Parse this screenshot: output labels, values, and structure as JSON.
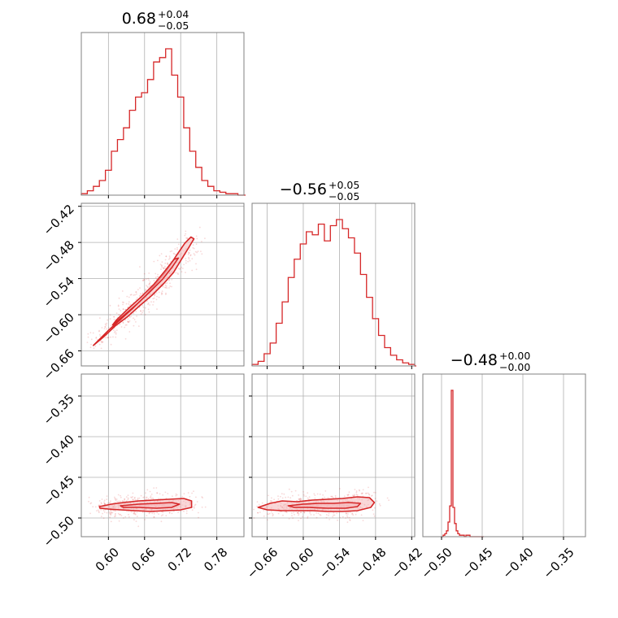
{
  "chart_data": {
    "type": "corner",
    "color": "#d62728",
    "fill_color": "#f4b6b8",
    "grid": true,
    "parameters": [
      {
        "range": [
          0.555,
          0.825
        ],
        "ticks": [
          0.6,
          0.66,
          0.72,
          0.78
        ],
        "tick_labels": [
          "0.60",
          "0.66",
          "0.72",
          "0.78"
        ],
        "title": {
          "main": "0.68",
          "up": "+0.04",
          "down": "−0.05"
        }
      },
      {
        "range": [
          -0.685,
          -0.415
        ],
        "ticks": [
          -0.66,
          -0.6,
          -0.54,
          -0.48,
          -0.42
        ],
        "tick_labels": [
          "−0.66",
          "−0.60",
          "−0.54",
          "−0.48",
          "−0.42"
        ],
        "title": {
          "main": "−0.56",
          "up": "+0.05",
          "down": "−0.05"
        }
      },
      {
        "range": [
          -0.523,
          -0.323
        ],
        "ticks": [
          -0.5,
          -0.45,
          -0.4,
          -0.35
        ],
        "tick_labels": [
          "−0.50",
          "−0.45",
          "−0.40",
          "−0.35"
        ],
        "title": {
          "main": "−0.48",
          "up": "+0.00",
          "down": "−0.00"
        }
      }
    ],
    "histograms": {
      "p0": {
        "x": [
          0.555,
          0.565,
          0.575,
          0.585,
          0.595,
          0.605,
          0.615,
          0.625,
          0.635,
          0.645,
          0.655,
          0.665,
          0.675,
          0.685,
          0.695,
          0.705,
          0.715,
          0.725,
          0.735,
          0.745,
          0.755,
          0.765,
          0.775,
          0.785,
          0.795,
          0.805,
          0.815,
          0.825
        ],
        "y": [
          1,
          3,
          6,
          10,
          17,
          30,
          38,
          46,
          58,
          67,
          70,
          79,
          91,
          94,
          100,
          82,
          67,
          46,
          30,
          19,
          10,
          6,
          3,
          2,
          1,
          1,
          0,
          0
        ]
      },
      "p1": {
        "x": [
          -0.685,
          -0.675,
          -0.665,
          -0.655,
          -0.645,
          -0.635,
          -0.625,
          -0.615,
          -0.605,
          -0.595,
          -0.585,
          -0.575,
          -0.565,
          -0.555,
          -0.545,
          -0.535,
          -0.525,
          -0.515,
          -0.505,
          -0.495,
          -0.485,
          -0.475,
          -0.465,
          -0.455,
          -0.445,
          -0.435,
          -0.425,
          -0.415
        ],
        "y": [
          1,
          3,
          8,
          15,
          28,
          42,
          58,
          70,
          80,
          88,
          86,
          93,
          82,
          92,
          96,
          90,
          84,
          74,
          60,
          45,
          31,
          20,
          12,
          7,
          4,
          2,
          1,
          0
        ]
      },
      "p2": {
        "x": [
          -0.5,
          -0.498,
          -0.496,
          -0.494,
          -0.492,
          -0.49,
          -0.488,
          -0.486,
          -0.484,
          -0.482,
          -0.48,
          -0.478,
          -0.476,
          -0.474,
          -0.472,
          -0.47,
          -0.465,
          -0.46,
          -0.455,
          -0.45
        ],
        "y": [
          0,
          1,
          2,
          4,
          10,
          21,
          100,
          20,
          9,
          4,
          2,
          1,
          1,
          1,
          0,
          1,
          0,
          0,
          0,
          0
        ]
      }
    },
    "contours": {
      "p1_vs_p0": {
        "outer": [
          [
            0.575,
            -0.651
          ],
          [
            0.593,
            -0.636
          ],
          [
            0.612,
            -0.618
          ],
          [
            0.632,
            -0.603
          ],
          [
            0.652,
            -0.585
          ],
          [
            0.672,
            -0.568
          ],
          [
            0.692,
            -0.548
          ],
          [
            0.708,
            -0.53
          ],
          [
            0.722,
            -0.507
          ],
          [
            0.733,
            -0.489
          ],
          [
            0.742,
            -0.474
          ],
          [
            0.737,
            -0.471
          ],
          [
            0.727,
            -0.481
          ],
          [
            0.712,
            -0.503
          ],
          [
            0.697,
            -0.526
          ],
          [
            0.68,
            -0.547
          ],
          [
            0.662,
            -0.568
          ],
          [
            0.642,
            -0.588
          ],
          [
            0.62,
            -0.608
          ],
          [
            0.6,
            -0.626
          ],
          [
            0.583,
            -0.643
          ]
        ],
        "inner": [
          [
            0.607,
            -0.617
          ],
          [
            0.627,
            -0.6
          ],
          [
            0.65,
            -0.58
          ],
          [
            0.67,
            -0.561
          ],
          [
            0.69,
            -0.541
          ],
          [
            0.705,
            -0.522
          ],
          [
            0.716,
            -0.506
          ],
          [
            0.709,
            -0.508
          ],
          [
            0.694,
            -0.527
          ],
          [
            0.676,
            -0.549
          ],
          [
            0.656,
            -0.569
          ],
          [
            0.634,
            -0.589
          ],
          [
            0.613,
            -0.609
          ]
        ]
      },
      "p2_vs_p0": {
        "outer": [
          [
            0.585,
            -0.486
          ],
          [
            0.605,
            -0.483
          ],
          [
            0.625,
            -0.481
          ],
          [
            0.65,
            -0.479
          ],
          [
            0.675,
            -0.478
          ],
          [
            0.7,
            -0.477
          ],
          [
            0.725,
            -0.476
          ],
          [
            0.738,
            -0.479
          ],
          [
            0.738,
            -0.487
          ],
          [
            0.72,
            -0.49
          ],
          [
            0.695,
            -0.491
          ],
          [
            0.67,
            -0.492
          ],
          [
            0.645,
            -0.491
          ],
          [
            0.62,
            -0.49
          ],
          [
            0.6,
            -0.489
          ],
          [
            0.586,
            -0.488
          ]
        ],
        "inner": [
          [
            0.62,
            -0.485
          ],
          [
            0.65,
            -0.483
          ],
          [
            0.68,
            -0.482
          ],
          [
            0.705,
            -0.481
          ],
          [
            0.718,
            -0.483
          ],
          [
            0.705,
            -0.487
          ],
          [
            0.68,
            -0.488
          ],
          [
            0.65,
            -0.487
          ],
          [
            0.625,
            -0.487
          ]
        ]
      },
      "p2_vs_p1": {
        "outer": [
          [
            -0.675,
            -0.487
          ],
          [
            -0.655,
            -0.482
          ],
          [
            -0.635,
            -0.479
          ],
          [
            -0.61,
            -0.48
          ],
          [
            -0.585,
            -0.478
          ],
          [
            -0.56,
            -0.477
          ],
          [
            -0.535,
            -0.476
          ],
          [
            -0.51,
            -0.474
          ],
          [
            -0.49,
            -0.475
          ],
          [
            -0.482,
            -0.481
          ],
          [
            -0.488,
            -0.487
          ],
          [
            -0.51,
            -0.491
          ],
          [
            -0.535,
            -0.492
          ],
          [
            -0.56,
            -0.492
          ],
          [
            -0.585,
            -0.491
          ],
          [
            -0.61,
            -0.491
          ],
          [
            -0.635,
            -0.491
          ],
          [
            -0.66,
            -0.49
          ]
        ],
        "inner": [
          [
            -0.625,
            -0.485
          ],
          [
            -0.6,
            -0.483
          ],
          [
            -0.575,
            -0.482
          ],
          [
            -0.55,
            -0.482
          ],
          [
            -0.525,
            -0.481
          ],
          [
            -0.505,
            -0.482
          ],
          [
            -0.51,
            -0.486
          ],
          [
            -0.53,
            -0.488
          ],
          [
            -0.56,
            -0.488
          ],
          [
            -0.59,
            -0.487
          ],
          [
            -0.615,
            -0.487
          ]
        ]
      }
    }
  }
}
